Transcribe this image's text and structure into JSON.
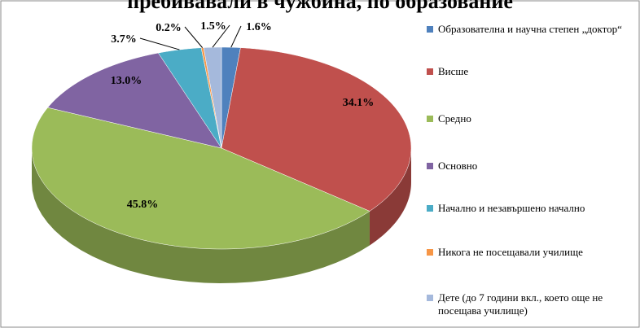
{
  "chart_data": {
    "type": "pie3d",
    "title": "пребивавали в чужбина, по образование",
    "categories": [
      "Образователна и научна степен „доктор“",
      "Висше",
      "Средно",
      "Основно",
      "Начално и незавършено начално",
      "Никога не посещавали училище",
      "Дете (до 7 години вкл., което още не посещава училище)"
    ],
    "values": [
      1.6,
      34.1,
      45.8,
      13.0,
      3.7,
      0.2,
      1.5
    ],
    "value_labels": [
      "1.6%",
      "34.1%",
      "45.8%",
      "13.0%",
      "3.7%",
      "0.2%",
      "1.5%"
    ],
    "colors": [
      "#4f81bd",
      "#c0504d",
      "#9bbb59",
      "#8064a2",
      "#4bacc6",
      "#f79646",
      "#a5b9dc"
    ],
    "legend": "right"
  }
}
